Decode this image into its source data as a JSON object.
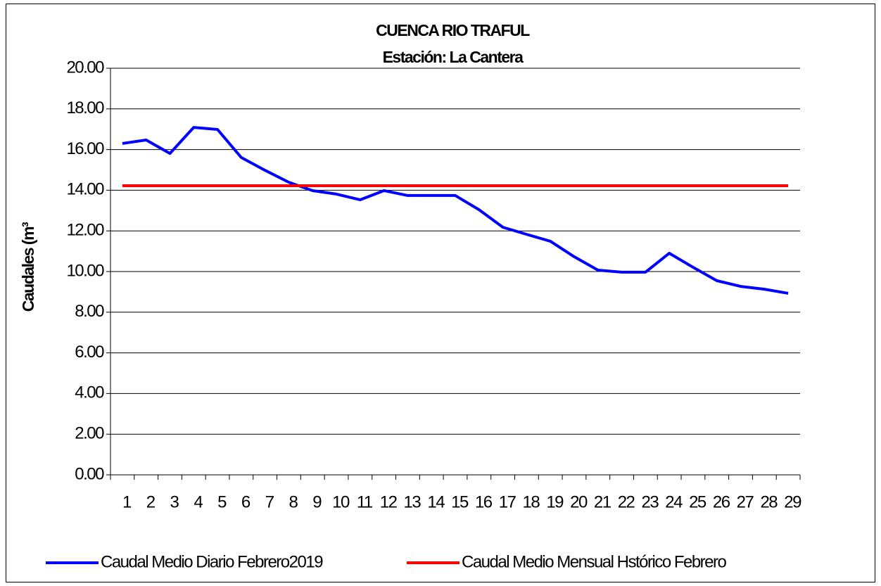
{
  "chart_data": {
    "type": "line",
    "title": "CUENCA RIO TRAFUL",
    "subtitle": "Estación: La Cantera",
    "y_label": "Caudales (m³",
    "categories": [
      "1",
      "2",
      "3",
      "4",
      "5",
      "6",
      "7",
      "8",
      "9",
      "10",
      "11",
      "12",
      "13",
      "14",
      "15",
      "16",
      "17",
      "18",
      "19",
      "20",
      "21",
      "22",
      "23",
      "24",
      "25",
      "26",
      "27",
      "28",
      "29"
    ],
    "series": [
      {
        "name": "Caudal Medio Diario Febrero2019",
        "color": "#0000ff",
        "values": [
          16.3,
          16.47,
          15.81,
          17.09,
          16.99,
          15.61,
          14.98,
          14.39,
          13.98,
          13.81,
          13.53,
          13.98,
          13.74,
          13.74,
          13.74,
          13.04,
          12.18,
          11.83,
          11.49,
          10.73,
          10.07,
          9.97,
          9.97,
          10.9,
          10.21,
          9.55,
          9.27,
          9.13,
          8.93
        ]
      },
      {
        "name": "Caudal Medio Mensual Hstórico Febrero",
        "color": "#ff0000",
        "values": [
          14.22,
          14.22,
          14.22,
          14.22,
          14.22,
          14.22,
          14.22,
          14.22,
          14.22,
          14.22,
          14.22,
          14.22,
          14.22,
          14.22,
          14.22,
          14.22,
          14.22,
          14.22,
          14.22,
          14.22,
          14.22,
          14.22,
          14.22,
          14.22,
          14.22,
          14.22,
          14.22,
          14.22,
          14.22
        ]
      }
    ],
    "ylim": [
      0,
      20
    ],
    "yticks": [
      {
        "value": 0,
        "label": "0.00"
      },
      {
        "value": 2,
        "label": "2.00"
      },
      {
        "value": 4,
        "label": "4.00"
      },
      {
        "value": 6,
        "label": "6.00"
      },
      {
        "value": 8,
        "label": "8.00"
      },
      {
        "value": 10,
        "label": "10.00"
      },
      {
        "value": 12,
        "label": "12.00"
      },
      {
        "value": 14,
        "label": "14.00"
      },
      {
        "value": 16,
        "label": "16.00"
      },
      {
        "value": 18,
        "label": "18.00"
      },
      {
        "value": 20,
        "label": "20.00"
      }
    ],
    "grid": true,
    "legend": "bottom"
  }
}
